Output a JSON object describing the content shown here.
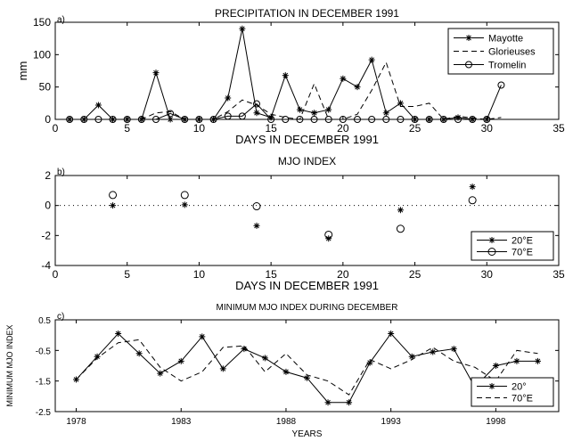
{
  "chart_data": [
    {
      "type": "line",
      "panel_label": "a)",
      "title": "PRECIPITATION IN DECEMBER 1991",
      "xlabel": "DAYS IN DECEMBER 1991",
      "ylabel": "mm",
      "xlim": [
        0,
        35
      ],
      "ylim": [
        0,
        150
      ],
      "xticks": [
        0,
        5,
        10,
        15,
        20,
        25,
        30,
        35
      ],
      "yticks": [
        0,
        50,
        100,
        150
      ],
      "legend": "top-right",
      "x": [
        1,
        2,
        3,
        4,
        5,
        6,
        7,
        8,
        9,
        10,
        11,
        12,
        13,
        14,
        15,
        16,
        17,
        18,
        19,
        20,
        21,
        22,
        23,
        24,
        25,
        26,
        27,
        28,
        29,
        30,
        31
      ],
      "series": [
        {
          "name": "Mayotte",
          "style": "solid-star",
          "values": [
            0,
            0,
            22,
            0,
            0,
            0,
            72,
            0,
            0,
            0,
            0,
            33,
            140,
            10,
            3,
            68,
            15,
            10,
            15,
            63,
            50,
            92,
            10,
            25,
            0,
            0,
            0,
            3,
            0,
            0,
            null
          ]
        },
        {
          "name": "Glorieuses",
          "style": "dashed",
          "values": [
            0,
            0,
            0,
            0,
            0,
            0,
            10,
            12,
            0,
            0,
            0,
            12,
            30,
            22,
            8,
            3,
            0,
            55,
            0,
            0,
            8,
            45,
            88,
            20,
            20,
            25,
            0,
            5,
            2,
            0,
            3
          ]
        },
        {
          "name": "Tromelin",
          "style": "solid-circle",
          "values": [
            0,
            0,
            0,
            0,
            0,
            0,
            0,
            9,
            0,
            0,
            0,
            5,
            5,
            24,
            0,
            0,
            0,
            0,
            0,
            0,
            0,
            0,
            0,
            0,
            0,
            0,
            0,
            0,
            0,
            0,
            53
          ]
        }
      ]
    },
    {
      "type": "scatter",
      "panel_label": "b)",
      "title": "MJO INDEX",
      "xlabel": "DAYS IN DECEMBER 1991",
      "ylabel": "",
      "xlim": [
        0,
        35
      ],
      "ylim": [
        -4,
        2
      ],
      "xticks": [
        0,
        5,
        10,
        15,
        20,
        25,
        30,
        35
      ],
      "yticks": [
        -4,
        -2,
        0,
        2
      ],
      "zero_line": "dotted",
      "legend": "bottom-right",
      "series": [
        {
          "name": "20°E",
          "marker": "star",
          "x": [
            4,
            9,
            14,
            19,
            24,
            29
          ],
          "values": [
            0.0,
            0.05,
            -1.35,
            -2.2,
            -0.3,
            1.25
          ]
        },
        {
          "name": "70°E",
          "marker": "circle",
          "x": [
            4,
            9,
            14,
            19,
            24,
            29
          ],
          "values": [
            0.7,
            0.7,
            -0.05,
            -1.95,
            -1.55,
            0.35
          ]
        }
      ]
    },
    {
      "type": "line",
      "panel_label": "c)",
      "title": "MINIMUM MJO INDEX DURING DECEMBER",
      "xlabel": "YEARS",
      "ylabel": "MINIMUM MJO INDEX",
      "xlim": [
        1977,
        2001
      ],
      "ylim": [
        -2.5,
        0.5
      ],
      "xticks": [
        1978,
        1983,
        1988,
        1993,
        1998
      ],
      "yticks": [
        -2.5,
        -1.5,
        -0.5,
        0.5
      ],
      "legend": "bottom-right",
      "x": [
        1978,
        1979,
        1980,
        1981,
        1982,
        1983,
        1984,
        1985,
        1986,
        1987,
        1988,
        1989,
        1990,
        1991,
        1992,
        1993,
        1994,
        1995,
        1996,
        1997,
        1998,
        1999,
        2000
      ],
      "series": [
        {
          "name": "20°",
          "style": "solid-star",
          "values": [
            -1.45,
            -0.7,
            0.05,
            -0.6,
            -1.25,
            -0.85,
            -0.05,
            -1.1,
            -0.45,
            -0.75,
            -1.2,
            -1.4,
            -2.2,
            -2.2,
            -0.9,
            0.05,
            -0.7,
            -0.55,
            -0.45,
            -1.7,
            -1.0,
            -0.85,
            -0.85
          ]
        },
        {
          "name": "70°E",
          "style": "dashed",
          "values": [
            -1.45,
            -0.75,
            -0.25,
            -0.15,
            -1.05,
            -1.5,
            -1.2,
            -0.4,
            -0.35,
            -1.2,
            -0.6,
            -1.3,
            -1.5,
            -1.95,
            -0.8,
            -1.1,
            -0.8,
            -0.4,
            -0.85,
            -1.05,
            -1.5,
            -0.5,
            -0.6
          ]
        }
      ]
    }
  ]
}
